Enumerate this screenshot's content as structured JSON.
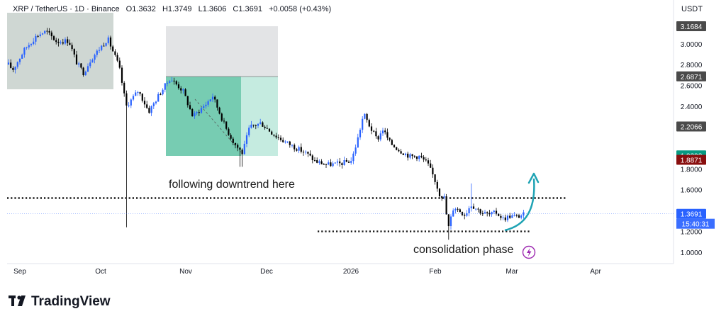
{
  "header": {
    "symbol": "XRP / TetherUS · 1D · Binance",
    "open": "O1.3632",
    "high": "H1.3749",
    "low": "L1.3606",
    "close": "C1.3691",
    "change": "+0.0058 (+0.43%)"
  },
  "currency": "USDT",
  "brand": "TradingView",
  "colors": {
    "up": "#2962ff",
    "down": "#000000",
    "annotation": "#1a1a1a",
    "arrow": "#1fa3b4",
    "current": "#2962ff",
    "green_tag": "#089981",
    "red_tag": "#880e0e",
    "grey_tag": "#4a4a4a"
  },
  "chart_data": {
    "type": "candlestick",
    "x_labels": [
      "Sep",
      "Oct",
      "Nov",
      "Dec",
      "2026",
      "Feb",
      "Mar",
      "Apr"
    ],
    "y_ticks": [
      "3.0000",
      "2.8000",
      "2.6000",
      "2.4000",
      "1.8000",
      "1.6000",
      "1.2000",
      "1.0000"
    ],
    "ylim": [
      0.92,
      3.3
    ],
    "price_tags": [
      {
        "value": 3.1684,
        "text": "3.1684",
        "style": "grey"
      },
      {
        "value": 2.6871,
        "text": "2.6871",
        "style": "grey"
      },
      {
        "value": 2.2066,
        "text": "2.2066",
        "style": "grey"
      },
      {
        "value": 1.9292,
        "text": "1.9292",
        "style": "green"
      },
      {
        "value": 1.8871,
        "text": "1.8871",
        "style": "red"
      },
      {
        "value": 1.3691,
        "text": "1.3691",
        "style": "blue"
      }
    ],
    "countdown": "15:40:31",
    "current_price": 1.3691,
    "resistance_level": 1.52,
    "support_level": 1.2,
    "annotations": [
      "following downtrend here",
      "consolidation phase"
    ],
    "anchors": [
      [
        0,
        2.9
      ],
      [
        18,
        2.75
      ],
      [
        35,
        2.95
      ],
      [
        52,
        3.08
      ],
      [
        65,
        3.12
      ],
      [
        80,
        3.02
      ],
      [
        97,
        3.03
      ],
      [
        108,
        2.82
      ],
      [
        118,
        2.72
      ],
      [
        128,
        2.85
      ],
      [
        140,
        2.95
      ],
      [
        152,
        3.05
      ],
      [
        168,
        2.78
      ],
      [
        178,
        2.4
      ],
      [
        195,
        2.55
      ],
      [
        210,
        2.35
      ],
      [
        225,
        2.52
      ],
      [
        240,
        2.67
      ],
      [
        258,
        2.55
      ],
      [
        272,
        2.3
      ],
      [
        290,
        2.42
      ],
      [
        300,
        2.5
      ],
      [
        318,
        2.2
      ],
      [
        330,
        2.05
      ],
      [
        342,
        1.95
      ],
      [
        352,
        2.2
      ],
      [
        368,
        2.24
      ],
      [
        388,
        2.12
      ],
      [
        402,
        2.06
      ],
      [
        418,
        2.0
      ],
      [
        432,
        1.95
      ],
      [
        445,
        1.87
      ],
      [
        462,
        1.84
      ],
      [
        480,
        1.85
      ],
      [
        496,
        1.88
      ],
      [
        505,
        2.1
      ],
      [
        513,
        2.33
      ],
      [
        522,
        2.2
      ],
      [
        532,
        2.08
      ],
      [
        540,
        2.18
      ],
      [
        550,
        2.05
      ],
      [
        563,
        1.98
      ],
      [
        578,
        1.92
      ],
      [
        592,
        1.92
      ],
      [
        603,
        1.85
      ],
      [
        612,
        1.72
      ],
      [
        620,
        1.56
      ],
      [
        627,
        1.52
      ],
      [
        632,
        1.22
      ],
      [
        640,
        1.44
      ],
      [
        648,
        1.4
      ],
      [
        656,
        1.36
      ],
      [
        664,
        1.46
      ],
      [
        672,
        1.42
      ],
      [
        680,
        1.38
      ],
      [
        690,
        1.36
      ],
      [
        700,
        1.38
      ],
      [
        710,
        1.32
      ],
      [
        720,
        1.35
      ],
      [
        730,
        1.34
      ],
      [
        740,
        1.369
      ]
    ]
  }
}
